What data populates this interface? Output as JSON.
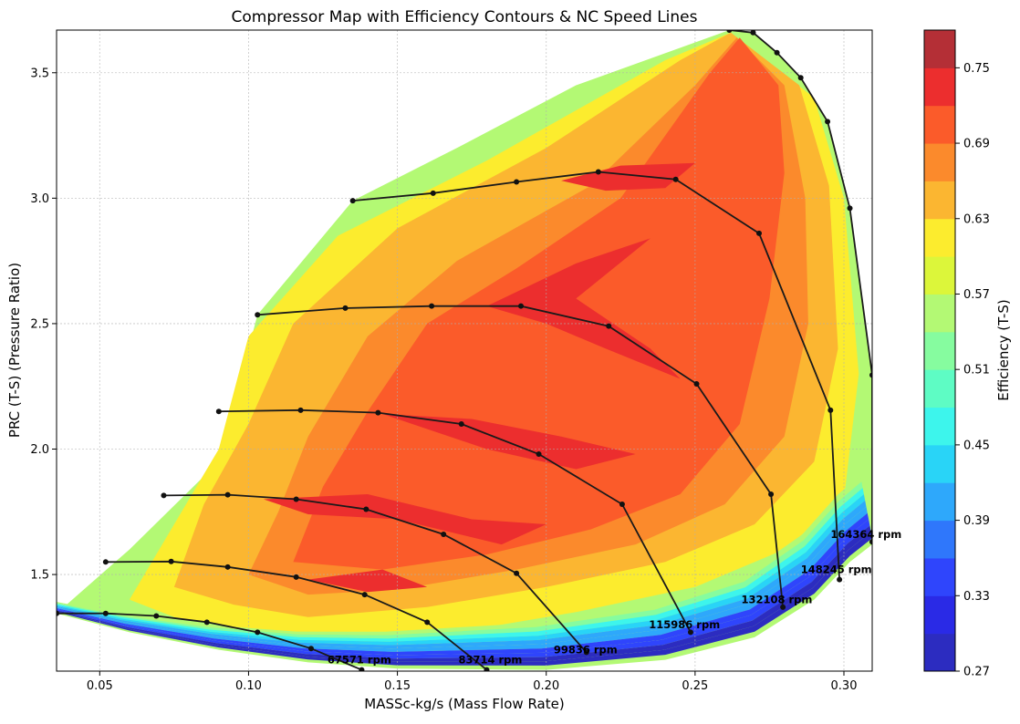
{
  "chart_data": {
    "type": "contour",
    "title": "Compressor Map with Efficiency Contours & NC Speed Lines",
    "xlabel": "MASSc-kg/s (Mass Flow Rate)",
    "ylabel": "PRC (T-S) (Pressure Ratio)",
    "xlim": [
      0.0355,
      0.3095
    ],
    "ylim": [
      1.115,
      3.67
    ],
    "xticks": [
      0.05,
      0.1,
      0.15,
      0.2,
      0.25,
      0.3
    ],
    "xtick_labels": [
      "0.05",
      "0.10",
      "0.15",
      "0.20",
      "0.25",
      "0.30"
    ],
    "yticks": [
      1.5,
      2.0,
      2.5,
      3.0,
      3.5
    ],
    "ytick_labels": [
      "1.5",
      "2.0",
      "2.5",
      "3.0",
      "3.5"
    ],
    "grid": true,
    "colorbar": {
      "label": "Efficiency (T-S)",
      "min": 0.27,
      "max": 0.78,
      "tick_values": [
        0.27,
        0.33,
        0.39,
        0.45,
        0.51,
        0.57,
        0.63,
        0.69,
        0.75
      ],
      "tick_labels": [
        "0.27",
        "0.33",
        "0.39",
        "0.45",
        "0.51",
        "0.57",
        "0.63",
        "0.69",
        "0.75"
      ],
      "colors": [
        "#2c2cc0",
        "#2a2ae6",
        "#2f45fc",
        "#2f77fb",
        "#2ea8fb",
        "#29d4f7",
        "#3df5ec",
        "#5efcc4",
        "#86fc9f",
        "#b3f974",
        "#dcf63a",
        "#fcec2e",
        "#fbb631",
        "#fb8a2c",
        "#fb5b2a",
        "#ec2e2e",
        "#b42f36"
      ]
    },
    "speed_lines": [
      {
        "label": "67571 rpm",
        "points": [
          [
            0.0355,
            1.345
          ],
          [
            0.052,
            1.345
          ],
          [
            0.069,
            1.335
          ],
          [
            0.086,
            1.31
          ],
          [
            0.103,
            1.27
          ],
          [
            0.121,
            1.205
          ],
          [
            0.138,
            1.12
          ]
        ]
      },
      {
        "label": "83714 rpm",
        "points": [
          [
            0.052,
            1.55
          ],
          [
            0.074,
            1.552
          ],
          [
            0.093,
            1.53
          ],
          [
            0.116,
            1.49
          ],
          [
            0.139,
            1.42
          ],
          [
            0.16,
            1.31
          ],
          [
            0.18,
            1.12
          ]
        ]
      },
      {
        "label": "99836 rpm",
        "points": [
          [
            0.0715,
            1.815
          ],
          [
            0.093,
            1.818
          ],
          [
            0.116,
            1.8
          ],
          [
            0.1395,
            1.76
          ],
          [
            0.1655,
            1.66
          ],
          [
            0.19,
            1.505
          ],
          [
            0.2135,
            1.19
          ]
        ]
      },
      {
        "label": "115986 rpm",
        "points": [
          [
            0.09,
            2.15
          ],
          [
            0.1175,
            2.155
          ],
          [
            0.1435,
            2.145
          ],
          [
            0.1715,
            2.1
          ],
          [
            0.1975,
            1.98
          ],
          [
            0.2255,
            1.78
          ],
          [
            0.2485,
            1.27
          ]
        ]
      },
      {
        "label": "132108 rpm",
        "points": [
          [
            0.103,
            2.535
          ],
          [
            0.1325,
            2.562
          ],
          [
            0.1615,
            2.57
          ],
          [
            0.1915,
            2.57
          ],
          [
            0.221,
            2.49
          ],
          [
            0.2505,
            2.26
          ],
          [
            0.2755,
            1.82
          ],
          [
            0.2795,
            1.37
          ]
        ]
      },
      {
        "label": "148245 rpm",
        "points": [
          [
            0.135,
            2.99
          ],
          [
            0.162,
            3.02
          ],
          [
            0.19,
            3.065
          ],
          [
            0.2175,
            3.105
          ],
          [
            0.2435,
            3.075
          ],
          [
            0.2715,
            2.86
          ],
          [
            0.2955,
            2.155
          ],
          [
            0.2985,
            1.48
          ]
        ]
      },
      {
        "label": "164364 rpm",
        "points": [
          [
            0.2615,
            3.67
          ],
          [
            0.2695,
            3.66
          ],
          [
            0.2775,
            3.58
          ],
          [
            0.2855,
            3.48
          ],
          [
            0.2945,
            3.305
          ],
          [
            0.302,
            2.96
          ],
          [
            0.3095,
            2.295
          ],
          [
            0.3095,
            1.63
          ]
        ]
      }
    ]
  }
}
